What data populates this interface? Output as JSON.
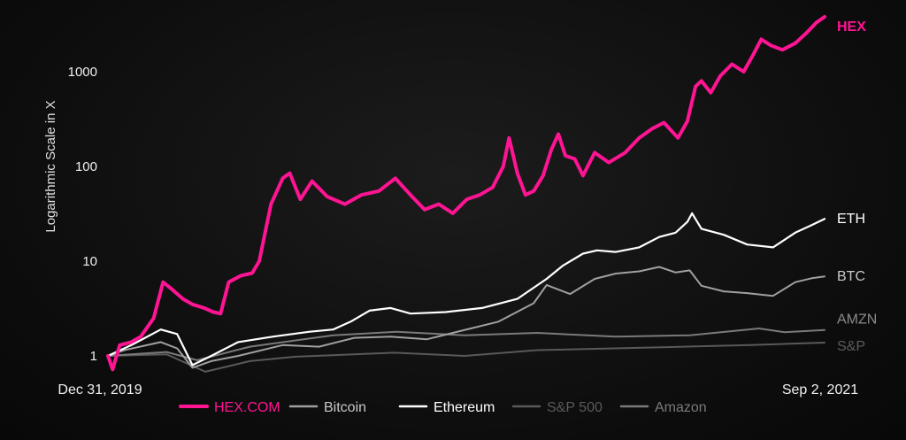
{
  "chart_data": {
    "type": "line",
    "ylabel": "Logarithmic Scale in X",
    "y_scale": "log",
    "y_ticks": [
      "1",
      "10",
      "100",
      "1000"
    ],
    "ylim": [
      0.7,
      5000
    ],
    "x_start_label": "Dec 31, 2019",
    "x_end_label": "Sep 2, 2021",
    "xlim": [
      "2019-12-31",
      "2021-09-02"
    ],
    "grid": false,
    "legend_position": "bottom",
    "series": [
      {
        "name": "HEX.COM",
        "end_label": "HEX",
        "color": "#ff1493",
        "points": [
          [
            "2019-12-31",
            1.0
          ],
          [
            "2020-01-04",
            0.72
          ],
          [
            "2020-01-10",
            1.3
          ],
          [
            "2020-01-20",
            1.4
          ],
          [
            "2020-01-28",
            1.6
          ],
          [
            "2020-02-08",
            2.5
          ],
          [
            "2020-02-16",
            6.0
          ],
          [
            "2020-02-24",
            5.0
          ],
          [
            "2020-03-04",
            4.0
          ],
          [
            "2020-03-12",
            3.5
          ],
          [
            "2020-03-22",
            3.2
          ],
          [
            "2020-03-30",
            2.9
          ],
          [
            "2020-04-05",
            2.8
          ],
          [
            "2020-04-12",
            6.0
          ],
          [
            "2020-04-22",
            7.0
          ],
          [
            "2020-05-02",
            7.5
          ],
          [
            "2020-05-08",
            10.0
          ],
          [
            "2020-05-18",
            40.0
          ],
          [
            "2020-05-28",
            75.0
          ],
          [
            "2020-06-03",
            85.0
          ],
          [
            "2020-06-12",
            45.0
          ],
          [
            "2020-06-22",
            70.0
          ],
          [
            "2020-07-05",
            48.0
          ],
          [
            "2020-07-20",
            40.0
          ],
          [
            "2020-08-03",
            50.0
          ],
          [
            "2020-08-18",
            55.0
          ],
          [
            "2020-09-01",
            75.0
          ],
          [
            "2020-09-14",
            50.0
          ],
          [
            "2020-09-26",
            35.0
          ],
          [
            "2020-10-08",
            40.0
          ],
          [
            "2020-10-20",
            32.0
          ],
          [
            "2020-11-01",
            45.0
          ],
          [
            "2020-11-12",
            50.0
          ],
          [
            "2020-11-23",
            60.0
          ],
          [
            "2020-12-02",
            100.0
          ],
          [
            "2020-12-07",
            200.0
          ],
          [
            "2020-12-14",
            85.0
          ],
          [
            "2020-12-21",
            50.0
          ],
          [
            "2020-12-28",
            55.0
          ],
          [
            "2021-01-05",
            80.0
          ],
          [
            "2021-01-12",
            150.0
          ],
          [
            "2021-01-18",
            220.0
          ],
          [
            "2021-01-24",
            130.0
          ],
          [
            "2021-02-01",
            120.0
          ],
          [
            "2021-02-08",
            80.0
          ],
          [
            "2021-02-18",
            140.0
          ],
          [
            "2021-03-02",
            110.0
          ],
          [
            "2021-03-16",
            140.0
          ],
          [
            "2021-03-28",
            200.0
          ],
          [
            "2021-04-08",
            250.0
          ],
          [
            "2021-04-18",
            290.0
          ],
          [
            "2021-04-30",
            200.0
          ],
          [
            "2021-05-08",
            300.0
          ],
          [
            "2021-05-15",
            700.0
          ],
          [
            "2021-05-20",
            800.0
          ],
          [
            "2021-05-28",
            600.0
          ],
          [
            "2021-06-05",
            900.0
          ],
          [
            "2021-06-15",
            1200.0
          ],
          [
            "2021-06-25",
            1000.0
          ],
          [
            "2021-07-03",
            1500.0
          ],
          [
            "2021-07-10",
            2200.0
          ],
          [
            "2021-07-18",
            1900.0
          ],
          [
            "2021-07-28",
            1700.0
          ],
          [
            "2021-08-08",
            2000.0
          ],
          [
            "2021-08-18",
            2600.0
          ],
          [
            "2021-08-26",
            3300.0
          ],
          [
            "2021-09-02",
            3800.0
          ]
        ]
      },
      {
        "name": "Bitcoin",
        "end_label": "BTC",
        "color": "#a0a0a0",
        "points": [
          [
            "2019-12-31",
            1.0
          ],
          [
            "2020-01-14",
            1.15
          ],
          [
            "2020-02-14",
            1.4
          ],
          [
            "2020-02-28",
            1.2
          ],
          [
            "2020-03-12",
            0.75
          ],
          [
            "2020-03-28",
            0.88
          ],
          [
            "2020-04-20",
            1.0
          ],
          [
            "2020-05-28",
            1.3
          ],
          [
            "2020-06-28",
            1.25
          ],
          [
            "2020-07-28",
            1.55
          ],
          [
            "2020-08-28",
            1.6
          ],
          [
            "2020-09-28",
            1.5
          ],
          [
            "2020-10-28",
            1.85
          ],
          [
            "2020-11-28",
            2.3
          ],
          [
            "2020-12-28",
            3.6
          ],
          [
            "2021-01-08",
            5.6
          ],
          [
            "2021-01-28",
            4.5
          ],
          [
            "2021-02-18",
            6.5
          ],
          [
            "2021-03-08",
            7.4
          ],
          [
            "2021-03-28",
            7.8
          ],
          [
            "2021-04-14",
            8.7
          ],
          [
            "2021-04-28",
            7.6
          ],
          [
            "2021-05-10",
            8.0
          ],
          [
            "2021-05-20",
            5.5
          ],
          [
            "2021-06-08",
            4.8
          ],
          [
            "2021-06-28",
            4.6
          ],
          [
            "2021-07-20",
            4.3
          ],
          [
            "2021-08-08",
            6.0
          ],
          [
            "2021-08-22",
            6.6
          ],
          [
            "2021-09-02",
            6.9
          ]
        ]
      },
      {
        "name": "Ethereum",
        "end_label": "ETH",
        "color": "#ffffff",
        "points": [
          [
            "2019-12-31",
            1.0
          ],
          [
            "2020-01-20",
            1.3
          ],
          [
            "2020-02-14",
            1.9
          ],
          [
            "2020-02-28",
            1.7
          ],
          [
            "2020-03-12",
            0.8
          ],
          [
            "2020-03-28",
            1.0
          ],
          [
            "2020-04-20",
            1.4
          ],
          [
            "2020-05-20",
            1.6
          ],
          [
            "2020-06-20",
            1.8
          ],
          [
            "2020-07-10",
            1.9
          ],
          [
            "2020-07-25",
            2.3
          ],
          [
            "2020-08-10",
            3.0
          ],
          [
            "2020-08-28",
            3.2
          ],
          [
            "2020-09-14",
            2.8
          ],
          [
            "2020-10-14",
            2.9
          ],
          [
            "2020-11-14",
            3.2
          ],
          [
            "2020-12-14",
            4.0
          ],
          [
            "2021-01-08",
            6.5
          ],
          [
            "2021-01-22",
            9.0
          ],
          [
            "2021-02-08",
            12.0
          ],
          [
            "2021-02-20",
            13.0
          ],
          [
            "2021-03-08",
            12.5
          ],
          [
            "2021-03-28",
            14.0
          ],
          [
            "2021-04-14",
            18.0
          ],
          [
            "2021-04-28",
            20.0
          ],
          [
            "2021-05-08",
            26.0
          ],
          [
            "2021-05-12",
            32.0
          ],
          [
            "2021-05-20",
            22.0
          ],
          [
            "2021-06-08",
            19.0
          ],
          [
            "2021-06-28",
            15.0
          ],
          [
            "2021-07-20",
            14.0
          ],
          [
            "2021-08-08",
            20.0
          ],
          [
            "2021-08-22",
            24.0
          ],
          [
            "2021-09-02",
            28.0
          ]
        ]
      },
      {
        "name": "S&P 500",
        "end_label": "S&P",
        "color": "#595959",
        "points": [
          [
            "2019-12-31",
            1.0
          ],
          [
            "2020-02-19",
            1.04
          ],
          [
            "2020-03-23",
            0.68
          ],
          [
            "2020-04-30",
            0.88
          ],
          [
            "2020-06-08",
            0.98
          ],
          [
            "2020-08-31",
            1.08
          ],
          [
            "2020-10-30",
            1.0
          ],
          [
            "2020-12-31",
            1.15
          ],
          [
            "2021-03-31",
            1.22
          ],
          [
            "2021-06-30",
            1.3
          ],
          [
            "2021-09-02",
            1.38
          ]
        ]
      },
      {
        "name": "Amazon",
        "end_label": "AMZN",
        "color": "#7a7a7a",
        "points": [
          [
            "2019-12-31",
            1.0
          ],
          [
            "2020-02-19",
            1.1
          ],
          [
            "2020-03-16",
            0.9
          ],
          [
            "2020-04-30",
            1.25
          ],
          [
            "2020-07-10",
            1.65
          ],
          [
            "2020-09-02",
            1.8
          ],
          [
            "2020-10-30",
            1.65
          ],
          [
            "2020-12-31",
            1.75
          ],
          [
            "2021-03-08",
            1.6
          ],
          [
            "2021-05-10",
            1.65
          ],
          [
            "2021-07-08",
            1.95
          ],
          [
            "2021-07-30",
            1.78
          ],
          [
            "2021-09-02",
            1.88
          ]
        ]
      }
    ]
  }
}
